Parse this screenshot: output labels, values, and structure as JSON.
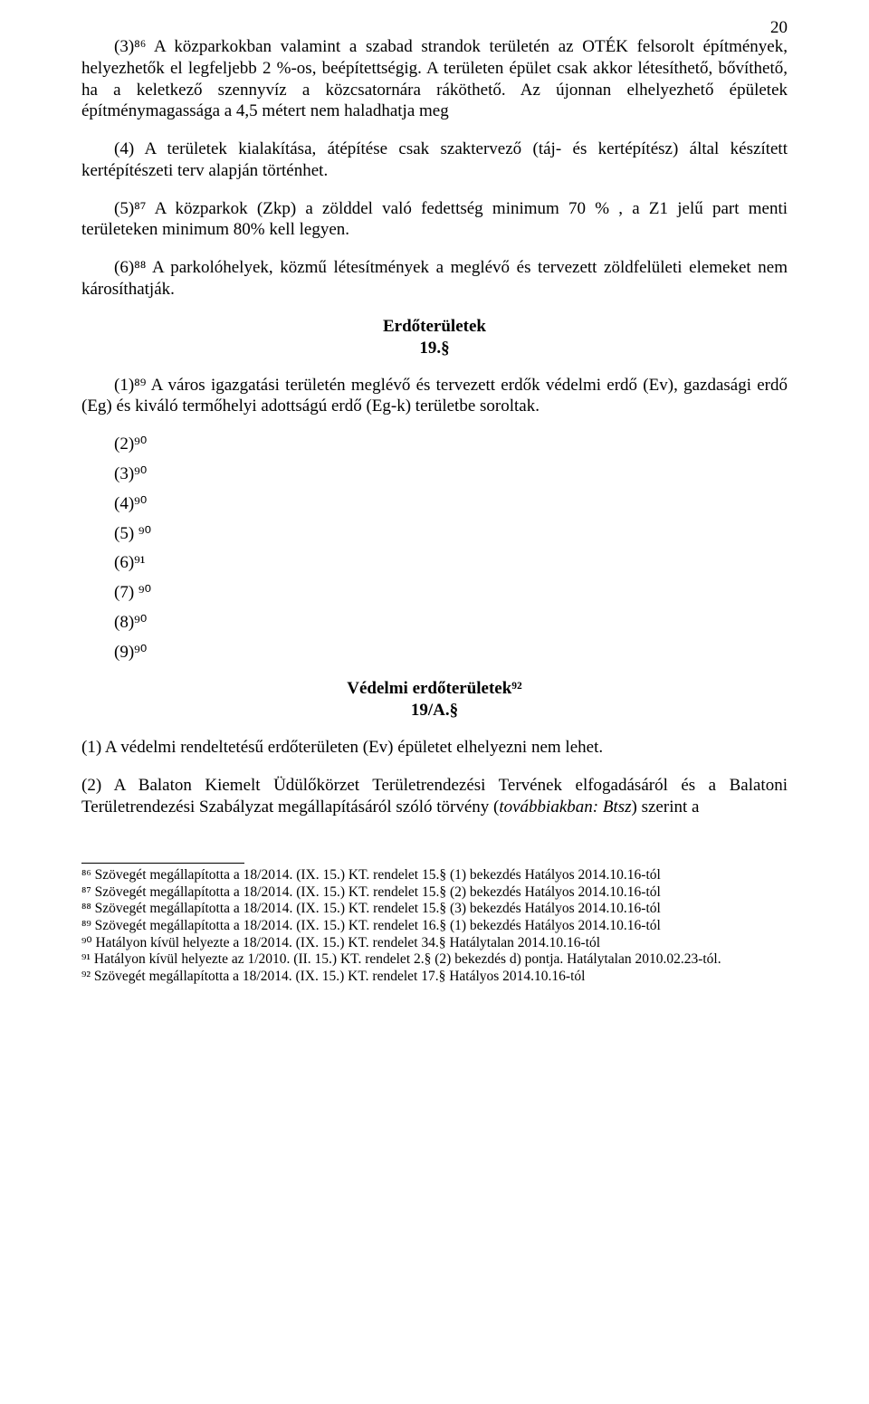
{
  "page_number": "20",
  "colors": {
    "text": "#000000",
    "background": "#ffffff",
    "rule": "#000000"
  },
  "typography": {
    "body_family": "Times New Roman",
    "body_size_pt": 14,
    "footnote_size_pt": 12
  },
  "paragraphs": {
    "p1": "(3)⁸⁶ A közparkokban valamint a szabad strandok területén az OTÉK felsorolt építmények, helyezhetők el legfeljebb 2 %-os, beépítettségig. A területen épület csak akkor létesíthető, bővíthető, ha a keletkező szennyvíz a közcsatornára ráköthető. Az újonnan elhelyezhető épületek építménymagassága a 4,5 métert nem haladhatja meg",
    "p2": "(4) A területek kialakítása, átépítése csak szaktervező (táj- és kertépítész) által készített kertépítészeti terv alapján történhet.",
    "p3": "(5)⁸⁷ A közparkok (Zkp) a zölddel való fedettség minimum 70 % , a Z1 jelű part menti területeken minimum  80% kell legyen.",
    "p4": "(6)⁸⁸ A parkolóhelyek, közmű létesítmények a meglévő és tervezett zöldfelületi elemeket nem károsíthatják."
  },
  "heading1": "Erdőterületek",
  "section1": "19.§",
  "para19_1": "(1)⁸⁹ A város igazgatási területén meglévő és tervezett erdők védelmi erdő (Ev), gazdasági erdő (Eg) és kiváló termőhelyi adottságú erdő (Eg-k) területbe soroltak.",
  "items": {
    "i2": "(2)⁹⁰",
    "i3": "(3)⁹⁰",
    "i4": "(4)⁹⁰",
    "i5": "(5) ⁹⁰",
    "i6": "(6)⁹¹",
    "i7": "(7) ⁹⁰",
    "i8": "(8)⁹⁰",
    "i9": "(9)⁹⁰"
  },
  "heading2": "Védelmi erdőterületek⁹²",
  "section2": "19/A.§",
  "para19a_1": "(1)  A védelmi rendeltetésű erdőterületen (Ev) épületet elhelyezni nem lehet.",
  "para19a_2_prefix": "(2)  A Balaton Kiemelt Üdülőkörzet Területrendezési Tervének elfogadásáról és a Balatoni Területrendezési Szabályzat megállapításáról szóló törvény (",
  "para19a_2_italic": "továbbiakban: Btsz",
  "para19a_2_suffix": ") szerint a",
  "footnotes": {
    "f86": "⁸⁶ Szövegét megállapította a 18/2014. (IX. 15.) KT. rendelet 15.§ (1) bekezdés Hatályos 2014.10.16-tól",
    "f87": "⁸⁷ Szövegét megállapította a 18/2014. (IX. 15.) KT. rendelet 15.§ (2) bekezdés Hatályos 2014.10.16-tól",
    "f88": "⁸⁸ Szövegét megállapította a 18/2014. (IX. 15.) KT. rendelet 15.§ (3) bekezdés Hatályos 2014.10.16-tól",
    "f89": "⁸⁹ Szövegét megállapította a 18/2014. (IX. 15.) KT. rendelet 16.§ (1) bekezdés Hatályos 2014.10.16-tól",
    "f90": "⁹⁰ Hatályon kívül helyezte a 18/2014. (IX. 15.) KT. rendelet 34.§ Hatálytalan 2014.10.16-tól",
    "f91": "⁹¹ Hatályon kívül helyezte az 1/2010. (II. 15.) KT. rendelet 2.§ (2) bekezdés d) pontja. Hatálytalan 2010.02.23-tól.",
    "f92": "⁹² Szövegét megállapította a 18/2014. (IX. 15.) KT. rendelet 17.§ Hatályos 2014.10.16-tól"
  }
}
